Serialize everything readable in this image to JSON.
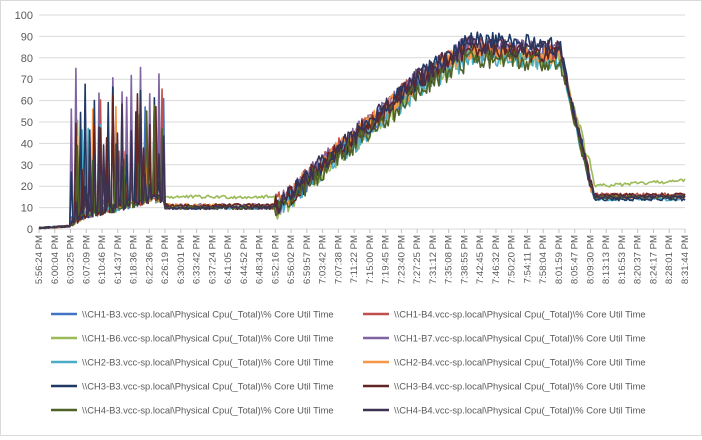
{
  "chart_data": {
    "type": "line",
    "title": "",
    "xlabel": "",
    "ylabel": "",
    "ylim": [
      0,
      100
    ],
    "yticks": [
      0,
      10,
      20,
      30,
      40,
      50,
      60,
      70,
      80,
      90,
      100
    ],
    "grid": "horizontal",
    "legend_position": "bottom",
    "x_tick_labels": [
      "5:56:24 PM",
      "6:00:04 PM",
      "6:03:25 PM",
      "6:07:09 PM",
      "6:10:46 PM",
      "6:14:37 PM",
      "6:18:36 PM",
      "6:22:36 PM",
      "6:26:19 PM",
      "6:30:01 PM",
      "6:33:42 PM",
      "6:37:24 PM",
      "6:41:05 PM",
      "6:44:52 PM",
      "6:48:34 PM",
      "6:52:16 PM",
      "6:56:02 PM",
      "6:59:57 PM",
      "7:03:42 PM",
      "7:07:38 PM",
      "7:11:22 PM",
      "7:15:00 PM",
      "7:19:45 PM",
      "7:23:40 PM",
      "7:27:25 PM",
      "7:31:12 PM",
      "7:35:08 PM",
      "7:38:55 PM",
      "7:42:45 PM",
      "7:46:32 PM",
      "7:50:20 PM",
      "7:54:11 PM",
      "7:58:04 PM",
      "8:01:59 PM",
      "8:05:47 PM",
      "8:09:30 PM",
      "8:13:13 PM",
      "8:16:53 PM",
      "8:20:37 PM",
      "8:24:17 PM",
      "8:28:01 PM",
      "8:31:44 PM"
    ],
    "key_profile": {
      "description_points_x_index": [
        0,
        2,
        3,
        5,
        7,
        8,
        9,
        15,
        16,
        18,
        20,
        22,
        24,
        26,
        27,
        29,
        31,
        33,
        34,
        35,
        36,
        38,
        41
      ],
      "typical_y": [
        0,
        1,
        5,
        8,
        12,
        12,
        10,
        10,
        15,
        30,
        42,
        55,
        68,
        78,
        82,
        84,
        82,
        78,
        45,
        15,
        14,
        15,
        15
      ]
    },
    "series": [
      {
        "name": "\\\\CH1-B3.vcc-sp.local\\Physical Cpu(_Total)\\% Core Util Time",
        "color": "#4472c4",
        "burst_peak": 62,
        "mid_y": 10,
        "plateau": 84,
        "tail": 15,
        "offset": 0
      },
      {
        "name": "\\\\CH1-B4.vcc-sp.local\\Physical Cpu(_Total)\\% Core Util Time",
        "color": "#c0504d",
        "burst_peak": 75,
        "mid_y": 10,
        "plateau": 85,
        "tail": 16,
        "offset": 1
      },
      {
        "name": "\\\\CH1-B6.vcc-sp.local\\Physical Cpu(_Total)\\% Core Util Time",
        "color": "#9bbb59",
        "burst_peak": 66,
        "mid_y": 15,
        "plateau": 82,
        "tail": 23,
        "offset": -1
      },
      {
        "name": "\\\\CH1-B7.vcc-sp.local\\Physical Cpu(_Total)\\% Core Util Time",
        "color": "#8064a2",
        "burst_peak": 77,
        "mid_y": 11,
        "plateau": 86,
        "tail": 15,
        "offset": 0.5
      },
      {
        "name": "\\\\CH2-B3.vcc-sp.local\\Physical Cpu(_Total)\\% Core Util Time",
        "color": "#4bacc6",
        "burst_peak": 63,
        "mid_y": 10,
        "plateau": 81,
        "tail": 14,
        "offset": -0.5
      },
      {
        "name": "\\\\CH2-B4.vcc-sp.local\\Physical Cpu(_Total)\\% Core Util Time",
        "color": "#f79646",
        "burst_peak": 60,
        "mid_y": 11,
        "plateau": 83,
        "tail": 15,
        "offset": 1.2
      },
      {
        "name": "\\\\CH3-B3.vcc-sp.local\\Physical Cpu(_Total)\\% Core Util Time",
        "color": "#1f3864",
        "burst_peak": 69,
        "mid_y": 10,
        "plateau": 88,
        "tail": 14,
        "offset": -1.2
      },
      {
        "name": "\\\\CH3-B4.vcc-sp.local\\Physical Cpu(_Total)\\% Core Util Time",
        "color": "#632523",
        "burst_peak": 64,
        "mid_y": 11,
        "plateau": 84,
        "tail": 16,
        "offset": 0.8
      },
      {
        "name": "\\\\CH4-B3.vcc-sp.local\\Physical Cpu(_Total)\\% Core Util Time",
        "color": "#4f6228",
        "burst_peak": 58,
        "mid_y": 10,
        "plateau": 80,
        "tail": 15,
        "offset": -0.8
      },
      {
        "name": "\\\\CH4-B4.vcc-sp.local\\Physical Cpu(_Total)\\% Core Util Time",
        "color": "#3f3151",
        "burst_peak": 66,
        "mid_y": 10,
        "plateau": 86,
        "tail": 15,
        "offset": 0.3
      }
    ]
  }
}
